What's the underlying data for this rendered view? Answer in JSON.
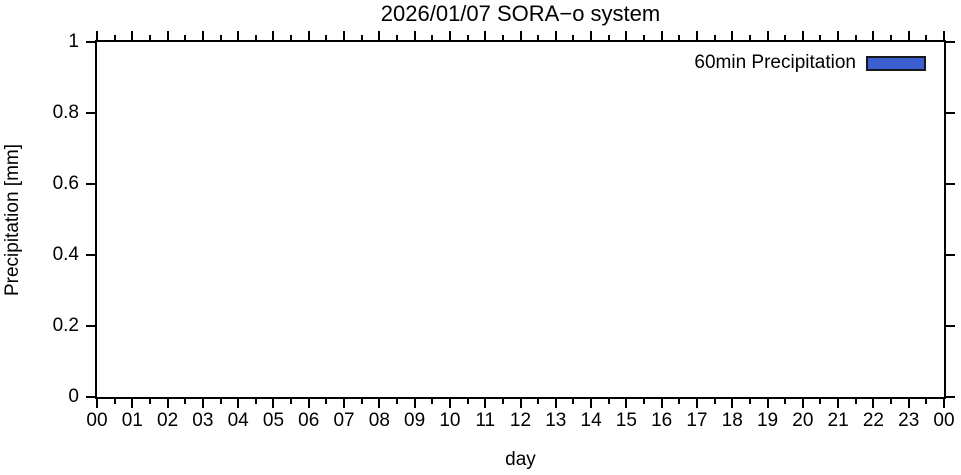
{
  "title": "2026/01/07 SORA−o system",
  "axes": {
    "y_label": "Precipitation [mm]",
    "x_label": "day"
  },
  "legend": {
    "label": "60min Precipitation",
    "swatch_color": "#3b5fd1",
    "swatch_border_color": "#16181c",
    "position": "top-right-inside"
  },
  "chart_data": {
    "type": "bar",
    "title": "2026/01/07 SORA−o system",
    "xlabel": "day",
    "ylabel": "Precipitation [mm]",
    "x_tick_labels": [
      "00",
      "01",
      "02",
      "03",
      "04",
      "05",
      "06",
      "07",
      "08",
      "09",
      "10",
      "11",
      "12",
      "13",
      "14",
      "15",
      "16",
      "17",
      "18",
      "19",
      "20",
      "21",
      "22",
      "23",
      "00"
    ],
    "y_ticks": [
      0,
      0.2,
      0.4,
      0.6,
      0.8,
      1
    ],
    "y_tick_labels": [
      "0",
      "0.2",
      "0.4",
      "0.6",
      "0.8",
      "1"
    ],
    "ylim": [
      0,
      1
    ],
    "grid": false,
    "legend_position": "top-right inside",
    "series": [
      {
        "name": "60min Precipitation",
        "color": "#3b5fd1",
        "values": []
      }
    ],
    "data_plotted": false
  }
}
